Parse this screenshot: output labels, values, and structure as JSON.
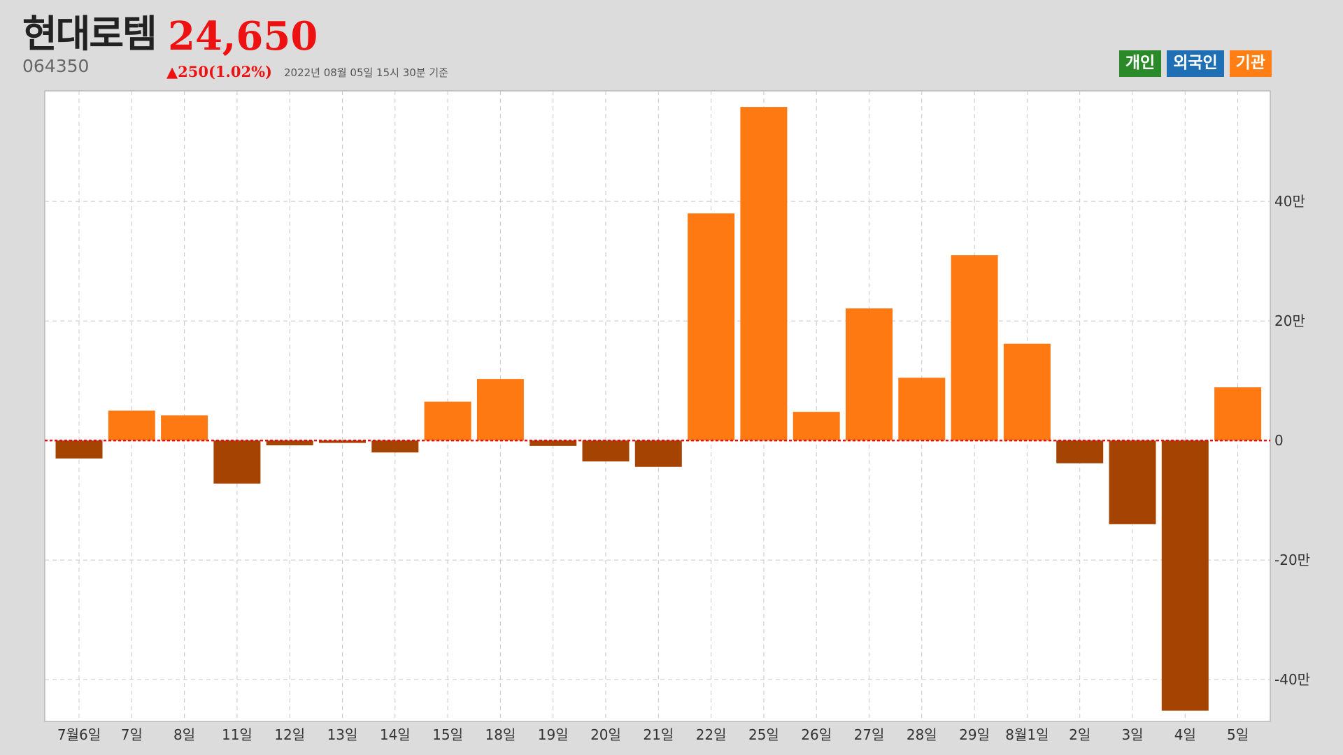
{
  "header": {
    "name": "현대로템",
    "price": "24,650",
    "code": "064350",
    "change": "▲250(1.02%)",
    "timestamp": "2022년 08월 05일 15시 30분 기준"
  },
  "legend": [
    {
      "label": "개인",
      "color": "#2a8a2a"
    },
    {
      "label": "외국인",
      "color": "#1f6fb5"
    },
    {
      "label": "기관",
      "color": "#ff7f14"
    }
  ],
  "colors": {
    "positive": "#ff7913",
    "negative": "#a54303",
    "zero_line": "#e01010"
  },
  "chart_data": {
    "type": "bar",
    "series": [
      {
        "name": "기관",
        "values": [
          -3,
          5,
          4.2,
          -7.2,
          -0.8,
          -0.4,
          -2,
          6.5,
          10.3,
          -0.9,
          -3.5,
          -4.4,
          38,
          55.8,
          4.8,
          22.1,
          10.5,
          31,
          16.2,
          -3.8,
          -14,
          -45.2,
          8.9
        ]
      }
    ],
    "categories": [
      "7월6일",
      "7일",
      "8일",
      "11일",
      "12일",
      "13일",
      "14일",
      "15일",
      "18일",
      "19일",
      "20일",
      "21일",
      "22일",
      "25일",
      "26일",
      "27일",
      "28일",
      "29일",
      "8월1일",
      "2일",
      "3일",
      "4일",
      "5일"
    ],
    "yticks": [
      {
        "value": 40,
        "label": "40만"
      },
      {
        "value": 20,
        "label": "20만"
      },
      {
        "value": 0,
        "label": "0"
      },
      {
        "value": -20,
        "label": "-20만"
      },
      {
        "value": -40,
        "label": "-40만"
      }
    ],
    "ylim": [
      -47,
      58.5
    ],
    "unit": "만",
    "grid": true
  }
}
